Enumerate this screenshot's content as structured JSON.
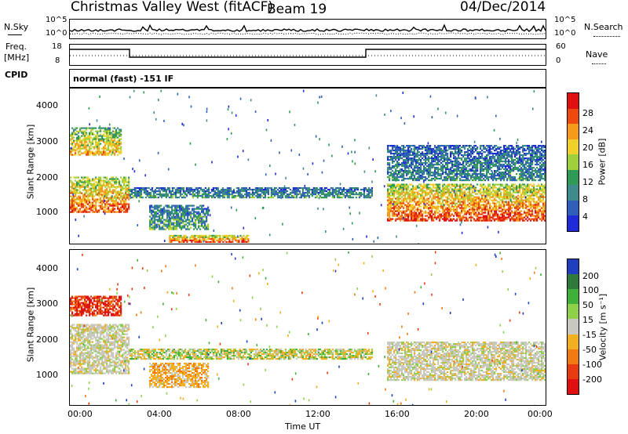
{
  "header": {
    "station": "Christmas Valley West (fitACF)",
    "beam": "Beam 19",
    "date": "04/Dec/2014"
  },
  "strip_panels": {
    "nsky_label": "N.Sky",
    "nsky_top": "10^5",
    "nsky_bottom": "10^0",
    "nsearch_label": "N.Search",
    "nsearch_top": "10^5",
    "nsearch_bottom": "10^0",
    "freq_label_1": "Freq.",
    "freq_label_2": "[MHz]",
    "freq_top": "18",
    "freq_bottom": "8",
    "nave_label": "Nave",
    "nave_top": "60",
    "nave_bottom": "0",
    "cpid_label": "CPID",
    "cpid_value": "normal (fast) -151 IF"
  },
  "chart_data": [
    {
      "type": "heatmap",
      "name_panel": "power",
      "ylabel": "Slant Range [km]",
      "ylim": [
        200,
        4600
      ],
      "yticks": [
        "1000",
        "2000",
        "3000",
        "4000"
      ],
      "xlim_hours": [
        0,
        24
      ],
      "colorbar": {
        "label": "Power [dB]",
        "ticks": [
          "4",
          "8",
          "12",
          "16",
          "20",
          "24",
          "28"
        ],
        "colors": [
          "#1f2bd8",
          "#2f5fb8",
          "#3f8a8a",
          "#2e9a56",
          "#9fcf3a",
          "#f2d02a",
          "#f59a1a",
          "#ee4a10",
          "#e11010"
        ]
      },
      "regions": [
        {
          "t0": 0.0,
          "t1": 3.0,
          "r0": 1100,
          "r1": 2100,
          "level": 0.85
        },
        {
          "t0": 0.0,
          "t1": 2.6,
          "r0": 2700,
          "r1": 3500,
          "level": 0.7
        },
        {
          "t0": 3.0,
          "t1": 15.2,
          "r0": 1500,
          "r1": 1800,
          "level": 0.35
        },
        {
          "t0": 4.0,
          "t1": 7.0,
          "r0": 600,
          "r1": 1300,
          "level": 0.4
        },
        {
          "t0": 5.0,
          "t1": 9.0,
          "r0": 250,
          "r1": 450,
          "level": 0.9
        },
        {
          "t0": 16.0,
          "t1": 24.0,
          "r0": 850,
          "r1": 1900,
          "level": 0.9
        },
        {
          "t0": 16.0,
          "t1": 24.0,
          "r0": 2000,
          "r1": 3000,
          "level": 0.3
        }
      ]
    },
    {
      "type": "heatmap",
      "name_panel": "velocity",
      "ylabel": "Slant Range [km]",
      "ylim": [
        200,
        4600
      ],
      "yticks": [
        "1000",
        "2000",
        "3000",
        "4000"
      ],
      "xlim_hours": [
        0,
        24
      ],
      "xticks": [
        "00:00",
        "04:00",
        "08:00",
        "12:00",
        "16:00",
        "20:00",
        "00:00"
      ],
      "xlabel": "Time UT",
      "colorbar": {
        "label": "Velocity [m s⁻¹]",
        "ticks": [
          "200",
          "100",
          "50",
          "15",
          "-15",
          "-50",
          "-100",
          "-200"
        ],
        "colors": [
          "#1f3fbf",
          "#2f7a3a",
          "#3fb03a",
          "#8fd04a",
          "#c8c8c0",
          "#f2b020",
          "#f07a10",
          "#e83a10",
          "#e01010"
        ]
      },
      "regions": [
        {
          "t0": 0.0,
          "t1": 2.6,
          "r0": 2750,
          "r1": 3300,
          "level": "neg"
        },
        {
          "t0": 0.0,
          "t1": 3.0,
          "r0": 1100,
          "r1": 2500,
          "level": "zero"
        },
        {
          "t0": 3.0,
          "t1": 15.2,
          "r0": 1500,
          "r1": 1800,
          "level": "mixed"
        },
        {
          "t0": 4.0,
          "t1": 7.0,
          "r0": 700,
          "r1": 1400,
          "level": "negsmall"
        },
        {
          "t0": 16.0,
          "t1": 24.0,
          "r0": 900,
          "r1": 2000,
          "level": "zero"
        }
      ]
    }
  ]
}
